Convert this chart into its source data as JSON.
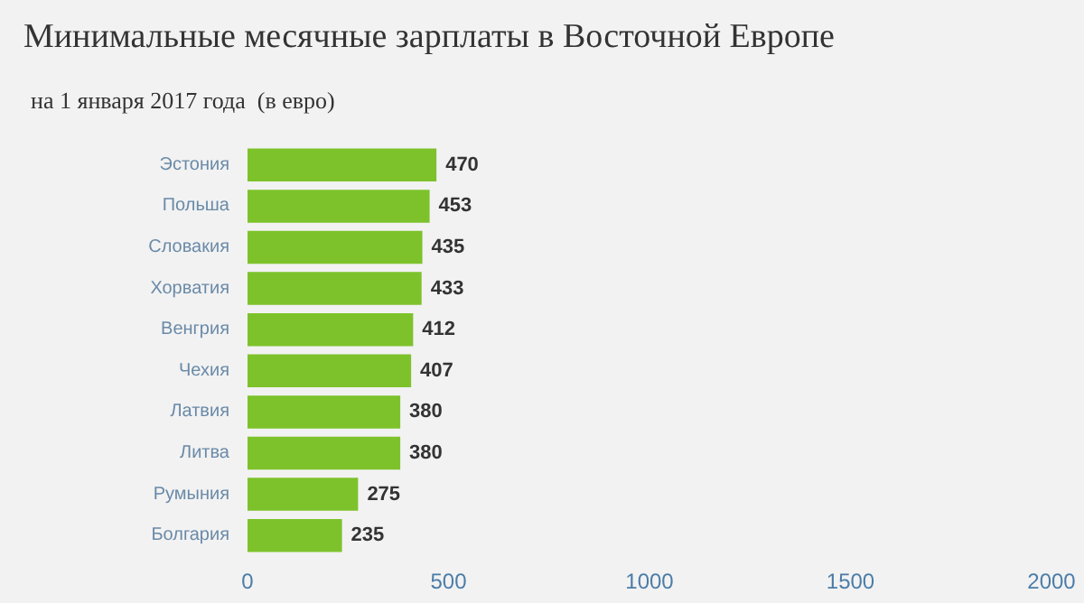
{
  "chart_data": {
    "type": "bar",
    "orientation": "horizontal",
    "title": "Минимальные месячные зарплаты в Восточной Европе",
    "subtitle": "на 1 января 2017 года  (в евро)",
    "categories": [
      "Эстония",
      "Польша",
      "Словакия",
      "Хорватия",
      "Венгрия",
      "Чехия",
      "Латвия",
      "Литва",
      "Румыния",
      "Болгария"
    ],
    "values": [
      470,
      453,
      435,
      433,
      412,
      407,
      380,
      380,
      275,
      235
    ],
    "color": "#7dc22b",
    "xlim": [
      0,
      2000
    ],
    "xticks": [
      0,
      500,
      1000,
      1500,
      2000
    ],
    "grid": false,
    "data_labels": true
  }
}
